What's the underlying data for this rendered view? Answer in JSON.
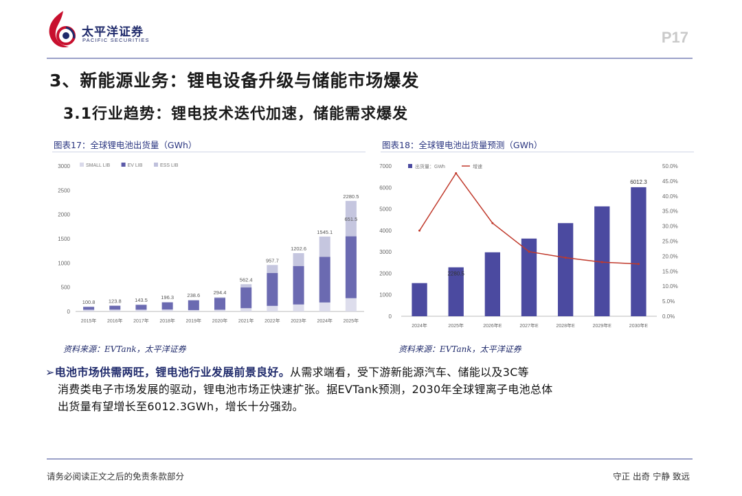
{
  "header": {
    "logo_cn": "太平洋证券",
    "logo_en": "PACIFIC SECURITIES",
    "page_number": "P17"
  },
  "section_title": "3、新能源业务：锂电设备升级与储能市场爆发",
  "subsection_title": "3.1行业趋势：锂电技术迭代加速，储能需求爆发",
  "figure_left": {
    "title": "图表17：全球锂电池出货量（GWh）",
    "source": "资料来源：EVTank，太平洋证券"
  },
  "figure_right": {
    "title": "图表18：全球锂电池出货量预测（GWh）",
    "source": "资料来源：EVTank，太平洋证券"
  },
  "chart_data": [
    {
      "type": "bar",
      "stacked": true,
      "categories": [
        "2015年",
        "2016年",
        "2017年",
        "2018年",
        "2019年",
        "2020年",
        "2021年",
        "2022年",
        "2023年",
        "2024年",
        "2025年"
      ],
      "series": [
        {
          "name": "SMALL LIB",
          "color": "#d9d9ea"
        },
        {
          "name": "EV LIB",
          "color": "#5b5aa8"
        },
        {
          "name": "ESS LIB",
          "color": "#bfc0dc"
        }
      ],
      "totals": [
        100.8,
        123.8,
        143.5,
        196.3,
        238.6,
        294.4,
        562.4,
        957.7,
        1202.6,
        1545.1,
        2280.5
      ],
      "segment_labels": [
        {
          "category": "2025年",
          "value": 651.5
        }
      ],
      "yticks": [
        0,
        500,
        1000,
        1500,
        2000,
        2500,
        3000
      ],
      "ylim": [
        0,
        3000
      ],
      "legend_position": "top-left",
      "grid": false
    },
    {
      "type": "bar",
      "categories": [
        "2024年",
        "2025年",
        "2026年E",
        "2027年E",
        "2028年E",
        "2029年E",
        "2030年E"
      ],
      "series": [
        {
          "name": "出货量：GWh",
          "type": "bar",
          "color": "#4b4aa0",
          "values": [
            1545,
            2280.5,
            2980,
            3620,
            4340,
            5120,
            6012.3
          ]
        },
        {
          "name": "增速",
          "type": "line",
          "color": "#c0392b",
          "axis": "right",
          "values": [
            28.5,
            47.6,
            31.0,
            21.5,
            19.5,
            18.0,
            17.4
          ]
        }
      ],
      "data_labels": [
        {
          "category": "2025年",
          "value": 2280.5
        },
        {
          "category": "2030年E",
          "value": 6012.3
        }
      ],
      "yticks_left": [
        0,
        1000,
        2000,
        3000,
        4000,
        5000,
        6000,
        7000
      ],
      "ylim_left": [
        0,
        7000
      ],
      "yticks_right": [
        "0.0%",
        "5.0%",
        "10.0%",
        "15.0%",
        "20.0%",
        "25.0%",
        "30.0%",
        "35.0%",
        "40.0%",
        "45.0%",
        "50.0%"
      ],
      "ylim_right": [
        0,
        50
      ],
      "legend_position": "top-left",
      "grid": false
    }
  ],
  "body": {
    "bullet": "➢",
    "bold_text": "电池市场供需两旺，锂电池行业发展前景良好。",
    "line1_rest": "从需求端看，受下游新能源汽车、储能以及3C等",
    "line2": "消费类电子市场发展的驱动，锂电池市场正快速扩张。据EVTank预测，2030年全球锂离子电池总体",
    "line3": "出货量有望增长至6012.3GWh，增长十分强劲。"
  },
  "footer": {
    "left": "请务必阅读正文之后的免责条款部分",
    "right": "守正 出奇 宁静 致远"
  },
  "colors": {
    "brand_navy": "#1f2a6b",
    "brand_red": "#c8102e",
    "bar_dark": "#4b4aa0",
    "growth_line": "#c0392b"
  }
}
